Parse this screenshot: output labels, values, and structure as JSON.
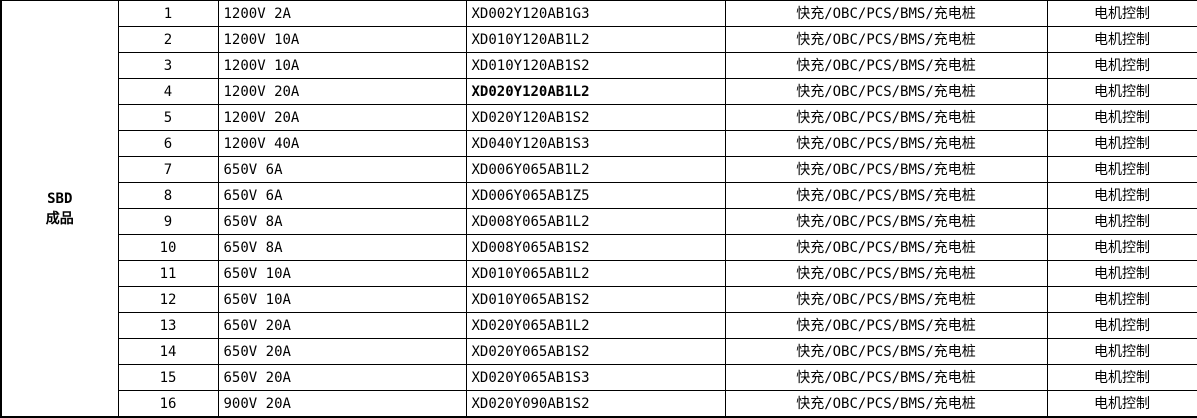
{
  "colors": {
    "border": "#000000",
    "text": "#000000",
    "background": "#ffffff"
  },
  "table": {
    "group_label_lines": [
      "SBD",
      "成品"
    ],
    "rows": [
      {
        "no": "1",
        "spec": "1200V 2A",
        "part": "XD002Y120AB1G3",
        "app1": "快充/OBC/PCS/BMS/充电桩",
        "app2": "电机控制",
        "part_bold": false
      },
      {
        "no": "2",
        "spec": "1200V 10A",
        "part": "XD010Y120AB1L2",
        "app1": "快充/OBC/PCS/BMS/充电桩",
        "app2": "电机控制",
        "part_bold": false
      },
      {
        "no": "3",
        "spec": "1200V 10A",
        "part": "XD010Y120AB1S2",
        "app1": "快充/OBC/PCS/BMS/充电桩",
        "app2": "电机控制",
        "part_bold": false
      },
      {
        "no": "4",
        "spec": "1200V 20A",
        "part": "XD020Y120AB1L2",
        "app1": "快充/OBC/PCS/BMS/充电桩",
        "app2": "电机控制",
        "part_bold": true
      },
      {
        "no": "5",
        "spec": "1200V 20A",
        "part": "XD020Y120AB1S2",
        "app1": "快充/OBC/PCS/BMS/充电桩",
        "app2": "电机控制",
        "part_bold": false
      },
      {
        "no": "6",
        "spec": "1200V 40A",
        "part": "XD040Y120AB1S3",
        "app1": "快充/OBC/PCS/BMS/充电桩",
        "app2": "电机控制",
        "part_bold": false
      },
      {
        "no": "7",
        "spec": "650V 6A",
        "part": "XD006Y065AB1L2",
        "app1": "快充/OBC/PCS/BMS/充电桩",
        "app2": "电机控制",
        "part_bold": false
      },
      {
        "no": "8",
        "spec": "650V 6A",
        "part": "XD006Y065AB1Z5",
        "app1": "快充/OBC/PCS/BMS/充电桩",
        "app2": "电机控制",
        "part_bold": false
      },
      {
        "no": "9",
        "spec": "650V 8A",
        "part": "XD008Y065AB1L2",
        "app1": "快充/OBC/PCS/BMS/充电桩",
        "app2": "电机控制",
        "part_bold": false
      },
      {
        "no": "10",
        "spec": "650V 8A",
        "part": "XD008Y065AB1S2",
        "app1": "快充/OBC/PCS/BMS/充电桩",
        "app2": "电机控制",
        "part_bold": false
      },
      {
        "no": "11",
        "spec": "650V 10A",
        "part": "XD010Y065AB1L2",
        "app1": "快充/OBC/PCS/BMS/充电桩",
        "app2": "电机控制",
        "part_bold": false
      },
      {
        "no": "12",
        "spec": "650V 10A",
        "part": "XD010Y065AB1S2",
        "app1": "快充/OBC/PCS/BMS/充电桩",
        "app2": "电机控制",
        "part_bold": false
      },
      {
        "no": "13",
        "spec": "650V 20A",
        "part": "XD020Y065AB1L2",
        "app1": "快充/OBC/PCS/BMS/充电桩",
        "app2": "电机控制",
        "part_bold": false
      },
      {
        "no": "14",
        "spec": "650V 20A",
        "part": "XD020Y065AB1S2",
        "app1": "快充/OBC/PCS/BMS/充电桩",
        "app2": "电机控制",
        "part_bold": false
      },
      {
        "no": "15",
        "spec": "650V 20A",
        "part": "XD020Y065AB1S3",
        "app1": "快充/OBC/PCS/BMS/充电桩",
        "app2": "电机控制",
        "part_bold": false
      },
      {
        "no": "16",
        "spec": "900V 20A",
        "part": "XD020Y090AB1S2",
        "app1": "快充/OBC/PCS/BMS/充电桩",
        "app2": "电机控制",
        "part_bold": false
      }
    ]
  }
}
